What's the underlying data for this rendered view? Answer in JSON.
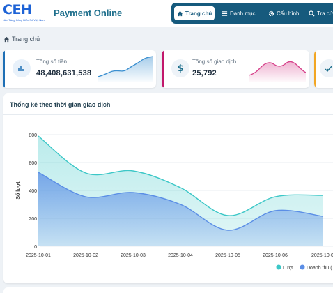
{
  "header": {
    "logo_text": "CEH",
    "logo_tagline": "Nền Tảng Cảng Biển Số Việt Nam",
    "app_title": "Payment Online",
    "nav": [
      {
        "label": "Trang chủ",
        "icon": "home-icon",
        "active": true
      },
      {
        "label": "Danh mục",
        "icon": "list-icon",
        "active": false
      },
      {
        "label": "Cấu hình",
        "icon": "gear-icon",
        "active": false
      },
      {
        "label": "Tra cứ",
        "icon": "search-icon",
        "active": false
      }
    ]
  },
  "breadcrumb": {
    "label": "Trang chủ",
    "icon": "home-icon"
  },
  "stats": [
    {
      "label": "Tổng số tiền",
      "value": "48,408,631,538",
      "icon": "bar-chart-icon",
      "accent": "#1e6fb5",
      "spark_color": "#3a8fd0"
    },
    {
      "label": "Tổng số giao dịch",
      "value": "25,792",
      "icon": "dollar-icon",
      "accent": "#c2186b",
      "spark_color": "#d6408a"
    },
    {
      "label": "",
      "value": "",
      "icon": "check-icon",
      "accent": "#f2a623",
      "spark_color": "#f2a623"
    }
  ],
  "panel": {
    "title": "Thống kê theo thời gian giao dịch"
  },
  "chart_data": {
    "type": "area",
    "ylabel": "Số lượt",
    "ylim": [
      0,
      800
    ],
    "yticks": [
      "0",
      "200",
      "400",
      "600",
      "800"
    ],
    "categories": [
      "2025-10-01",
      "2025-10-02",
      "2025-10-03",
      "2025-10-04",
      "2025-10-05",
      "2025-10-06",
      "2025-10-0"
    ],
    "series": [
      {
        "name": "Lượt",
        "color": "#3cc7c7",
        "values": [
          790,
          525,
          540,
          420,
          220,
          355,
          365
        ]
      },
      {
        "name": "Doanh thu (",
        "color": "#5b8ee6",
        "values": [
          530,
          355,
          385,
          300,
          115,
          255,
          215
        ]
      }
    ],
    "grid": true,
    "legend_position": "bottom-right"
  }
}
